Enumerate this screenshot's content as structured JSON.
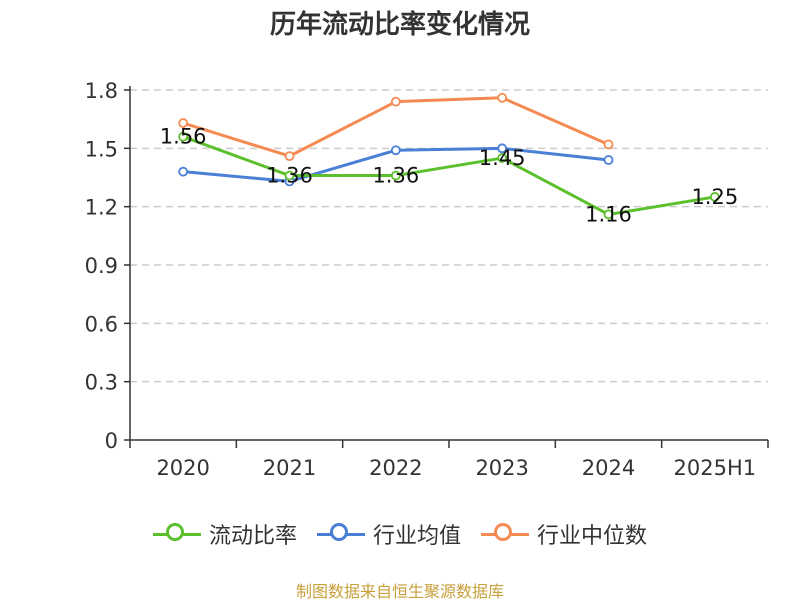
{
  "chart_data": {
    "type": "line",
    "title": "历年流动比率变化情况",
    "categories": [
      "2020",
      "2021",
      "2022",
      "2023",
      "2024",
      "2025H1"
    ],
    "y_ticks": [
      "0",
      "0.3",
      "0.6",
      "0.9",
      "1.2",
      "1.5",
      "1.8"
    ],
    "ylim": [
      0,
      1.8
    ],
    "grid": true,
    "legend_position": "bottom",
    "series": [
      {
        "name": "流动比率",
        "color": "#5cc02c",
        "values": [
          1.56,
          1.36,
          1.36,
          1.45,
          1.16,
          1.25
        ],
        "labels": [
          "1.56",
          "1.36",
          "1.36",
          "1.45",
          "1.16",
          "1.25"
        ]
      },
      {
        "name": "行业均值",
        "color": "#4a7fd6",
        "values": [
          1.38,
          1.33,
          1.49,
          1.5,
          1.44,
          null
        ]
      },
      {
        "name": "行业中位数",
        "color": "#f58b52",
        "values": [
          1.63,
          1.46,
          1.74,
          1.76,
          1.52,
          null
        ]
      }
    ]
  },
  "source": "制图数据来自恒生聚源数据库"
}
